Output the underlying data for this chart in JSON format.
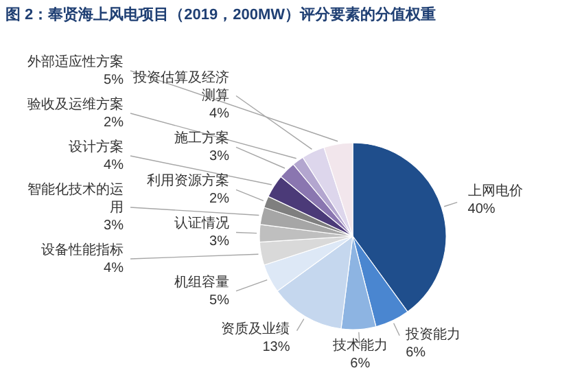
{
  "chart_data": {
    "type": "pie",
    "title": "图 2：奉贤海上风电项目（2019，200MW）评分要素的分值权重",
    "categories": [
      "上网电价",
      "投资能力",
      "技术能力",
      "资质及业绩",
      "机组容量",
      "设备性能指标",
      "认证情况",
      "智能化技术的运用",
      "利用资源方案",
      "设计方案",
      "施工方案",
      "验收及运维方案",
      "投资估算及经济测算",
      "外部适应性方案"
    ],
    "values": [
      40,
      6,
      6,
      13,
      5,
      4,
      3,
      3,
      2,
      4,
      3,
      2,
      4,
      5
    ],
    "value_labels": [
      "40%",
      "6%",
      "6%",
      "13%",
      "5%",
      "4%",
      "3%",
      "3%",
      "2%",
      "4%",
      "3%",
      "2%",
      "4%",
      "5%"
    ],
    "colors": [
      "#1f4e8c",
      "#4a86d0",
      "#8db4e2",
      "#c5d7ee",
      "#dde8f6",
      "#d9d9d9",
      "#bfbfbf",
      "#a6a6a6",
      "#7f7f7f",
      "#4b3a78",
      "#8a76b0",
      "#b3a6cf",
      "#ddd6ec",
      "#f2e6ec"
    ]
  }
}
